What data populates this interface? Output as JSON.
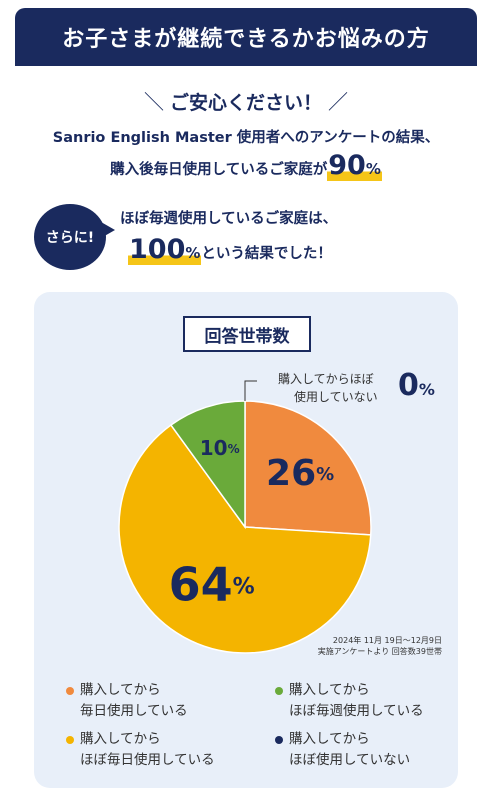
{
  "banner": {
    "title": "お子さまが継続できるかお悩みの方"
  },
  "intro": {
    "catch": "ご安心ください！",
    "line1": "Sanrio English Master 使用者へのアンケートの結果、",
    "line2_text": "購入後毎日使用しているご家庭が",
    "line2_value": "90",
    "line2_unit": "%"
  },
  "sarani": {
    "badge": "さらに!",
    "line1": "ほぼ毎週使用しているご家庭は、",
    "value": "100",
    "unit": "%",
    "line2_suffix": "という結果でした！"
  },
  "chart_title": "回答世帯数",
  "chart_data": {
    "type": "pie",
    "title": "回答世帯数",
    "unit": "%",
    "categories": [
      "購入してから毎日使用している",
      "購入してからほぼ毎日使用している",
      "購入してからほぼ毎週使用している",
      "購入してからほぼ使用していない"
    ],
    "values": [
      26,
      64,
      10,
      0
    ],
    "colors": [
      "#f08a3e",
      "#f4b400",
      "#6aaa3a",
      "#1a2a5e"
    ],
    "slice_labels": [
      "26",
      "64",
      "10",
      "0"
    ],
    "zero_callout": [
      "購入してからほぼ",
      "使用していない"
    ],
    "source_note": [
      "2024年 11月 19日〜12月9日",
      "実施アンケートより 回答数39世帯"
    ]
  },
  "legend": [
    {
      "line1": "購入してから",
      "line2": "毎日使用している",
      "color": "#f08a3e"
    },
    {
      "line1": "購入してから",
      "line2": "ほぼ毎週使用している",
      "color": "#6aaa3a"
    },
    {
      "line1": "購入してから",
      "line2": "ほぼ毎日使用している",
      "color": "#f4b400"
    },
    {
      "line1": "購入してから",
      "line2": "ほぼ使用していない",
      "color": "#1a2a5e"
    }
  ]
}
